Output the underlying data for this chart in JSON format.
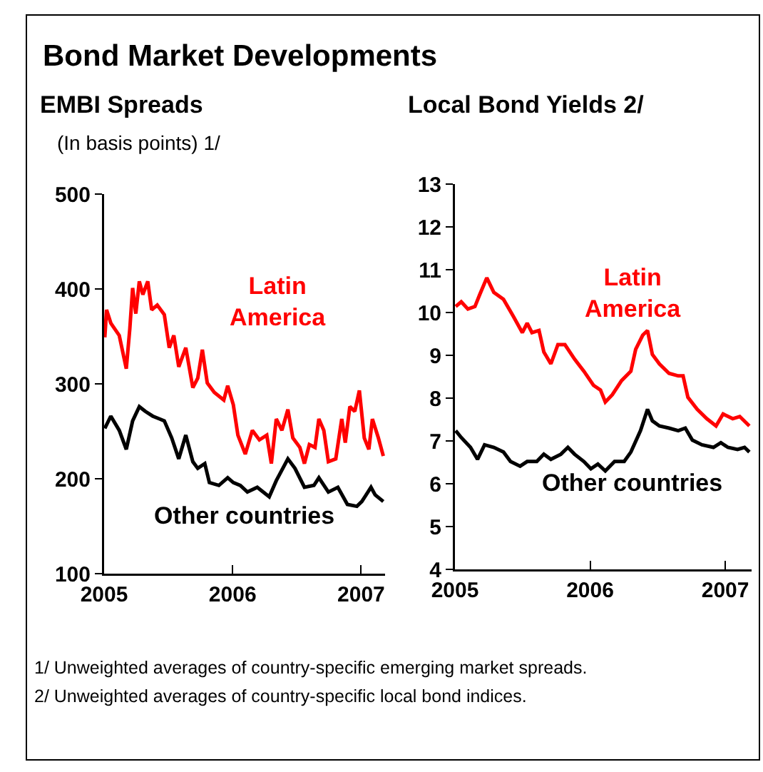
{
  "chart_data": [
    {
      "type": "line",
      "title": "Bond Market Developments",
      "subtitle": "EMBI Spreads",
      "ylabel": "(In basis points) 1/",
      "xlim": [
        "2005-01-01",
        "2007-03-10"
      ],
      "xticks": [
        "2005",
        "2006",
        "2007"
      ],
      "ylim": [
        100,
        500
      ],
      "yticks": [
        100,
        200,
        300,
        400,
        500
      ],
      "annotations": [
        "1/ Unweighted averages of country-specific emerging market spreads.",
        "2/ Unweighted averages of country-specific local bond indices."
      ],
      "series": [
        {
          "name": "Latin America",
          "color": "#ff0000",
          "x": [
            "2005-01-03",
            "2005-01-08",
            "2005-01-20",
            "2005-02-13",
            "2005-03-05",
            "2005-03-15",
            "2005-03-23",
            "2005-04-01",
            "2005-04-11",
            "2005-04-21",
            "2005-05-05",
            "2005-05-16",
            "2005-06-01",
            "2005-06-21",
            "2005-07-05",
            "2005-07-18",
            "2005-08-01",
            "2005-08-21",
            "2005-09-10",
            "2005-09-24",
            "2005-10-07",
            "2005-10-21",
            "2005-11-10",
            "2005-12-07",
            "2005-12-18",
            "2006-01-03",
            "2006-01-16",
            "2006-02-06",
            "2006-02-26",
            "2006-03-18",
            "2006-04-08",
            "2006-04-21",
            "2006-05-05",
            "2006-05-21",
            "2006-06-07",
            "2006-06-21",
            "2006-07-11",
            "2006-07-24",
            "2006-08-07",
            "2006-08-23",
            "2006-09-03",
            "2006-09-17",
            "2006-09-30",
            "2006-10-21",
            "2006-11-07",
            "2006-11-17",
            "2006-11-30",
            "2006-12-14",
            "2006-12-27",
            "2007-01-10",
            "2007-01-23",
            "2007-02-02",
            "2007-02-19",
            "2007-03-05"
          ],
          "values": [
            349,
            378,
            364,
            351,
            316,
            358,
            401,
            374,
            408,
            394,
            408,
            378,
            383,
            373,
            338,
            351,
            318,
            338,
            296,
            306,
            336,
            301,
            291,
            283,
            298,
            278,
            246,
            226,
            251,
            241,
            246,
            216,
            263,
            251,
            273,
            243,
            233,
            216,
            236,
            233,
            263,
            251,
            218,
            221,
            263,
            238,
            276,
            271,
            293,
            243,
            231,
            263,
            243,
            224
          ]
        },
        {
          "name": "Other countries",
          "color": "#000000",
          "x": [
            "2005-01-03",
            "2005-01-20",
            "2005-02-13",
            "2005-03-05",
            "2005-03-23",
            "2005-04-11",
            "2005-04-28",
            "2005-05-19",
            "2005-06-08",
            "2005-06-21",
            "2005-07-12",
            "2005-08-01",
            "2005-08-21",
            "2005-09-10",
            "2005-09-24",
            "2005-10-14",
            "2005-10-27",
            "2005-11-23",
            "2005-12-18",
            "2006-01-03",
            "2006-01-23",
            "2006-02-12",
            "2006-03-12",
            "2006-04-15",
            "2006-05-05",
            "2006-06-07",
            "2006-06-27",
            "2006-07-24",
            "2006-08-20",
            "2006-09-03",
            "2006-09-30",
            "2006-10-27",
            "2006-11-23",
            "2006-12-20",
            "2007-01-03",
            "2007-01-29",
            "2007-02-10",
            "2007-03-05"
          ],
          "values": [
            253,
            266,
            251,
            231,
            261,
            276,
            271,
            266,
            263,
            261,
            243,
            221,
            246,
            218,
            211,
            216,
            196,
            193,
            201,
            196,
            193,
            186,
            191,
            181,
            198,
            221,
            211,
            191,
            193,
            201,
            186,
            191,
            173,
            171,
            176,
            191,
            183,
            176
          ]
        }
      ]
    },
    {
      "type": "line",
      "title": "Local Bond Yields 2/",
      "xlim": [
        "2005-01-01",
        "2007-03-13"
      ],
      "xticks": [
        "2005",
        "2006",
        "2007"
      ],
      "ylim": [
        4,
        13
      ],
      "yticks": [
        4,
        5,
        6,
        7,
        8,
        9,
        10,
        11,
        12,
        13
      ],
      "series": [
        {
          "name": "Latin America",
          "color": "#ff0000",
          "x": [
            "2005-01-03",
            "2005-01-18",
            "2005-02-05",
            "2005-02-24",
            "2005-03-09",
            "2005-03-28",
            "2005-04-16",
            "2005-05-12",
            "2005-06-07",
            "2005-07-02",
            "2005-07-15",
            "2005-07-28",
            "2005-08-16",
            "2005-08-29",
            "2005-09-17",
            "2005-10-06",
            "2005-10-25",
            "2005-11-20",
            "2005-12-15",
            "2006-01-10",
            "2006-01-29",
            "2006-02-11",
            "2006-03-02",
            "2006-03-27",
            "2006-04-21",
            "2006-05-04",
            "2006-05-23",
            "2006-06-05",
            "2006-06-18",
            "2006-07-07",
            "2006-08-02",
            "2006-08-27",
            "2006-09-09",
            "2006-09-22",
            "2006-10-17",
            "2006-11-12",
            "2006-12-07",
            "2006-12-26",
            "2007-01-21",
            "2007-02-09",
            "2007-03-07"
          ],
          "values": [
            10.14,
            10.25,
            10.08,
            10.14,
            10.42,
            10.81,
            10.47,
            10.31,
            9.92,
            9.53,
            9.75,
            9.53,
            9.58,
            9.08,
            8.8,
            9.25,
            9.25,
            8.91,
            8.63,
            8.3,
            8.19,
            7.91,
            8.08,
            8.41,
            8.63,
            9.14,
            9.47,
            9.58,
            9.02,
            8.8,
            8.58,
            8.52,
            8.52,
            8.02,
            7.74,
            7.52,
            7.35,
            7.63,
            7.52,
            7.57,
            7.35
          ]
        },
        {
          "name": "Other countries",
          "color": "#000000",
          "x": [
            "2005-01-03",
            "2005-01-18",
            "2005-02-12",
            "2005-03-03",
            "2005-03-22",
            "2005-04-16",
            "2005-05-12",
            "2005-05-31",
            "2005-06-26",
            "2005-07-15",
            "2005-08-10",
            "2005-08-29",
            "2005-09-17",
            "2005-10-14",
            "2005-11-02",
            "2005-11-20",
            "2005-12-15",
            "2006-01-03",
            "2006-01-22",
            "2006-02-11",
            "2006-03-08",
            "2006-04-03",
            "2006-04-21",
            "2006-05-17",
            "2006-06-05",
            "2006-06-18",
            "2006-07-07",
            "2006-08-02",
            "2006-08-27",
            "2006-09-15",
            "2006-10-04",
            "2006-10-30",
            "2006-11-30",
            "2006-12-20",
            "2007-01-08",
            "2007-02-03",
            "2007-02-22",
            "2007-03-07"
          ],
          "values": [
            7.24,
            7.08,
            6.85,
            6.57,
            6.91,
            6.85,
            6.74,
            6.52,
            6.41,
            6.52,
            6.52,
            6.69,
            6.57,
            6.69,
            6.85,
            6.69,
            6.52,
            6.35,
            6.46,
            6.3,
            6.52,
            6.52,
            6.74,
            7.24,
            7.74,
            7.47,
            7.35,
            7.3,
            7.24,
            7.3,
            7.02,
            6.91,
            6.85,
            6.96,
            6.85,
            6.8,
            6.85,
            6.74
          ]
        }
      ]
    }
  ]
}
